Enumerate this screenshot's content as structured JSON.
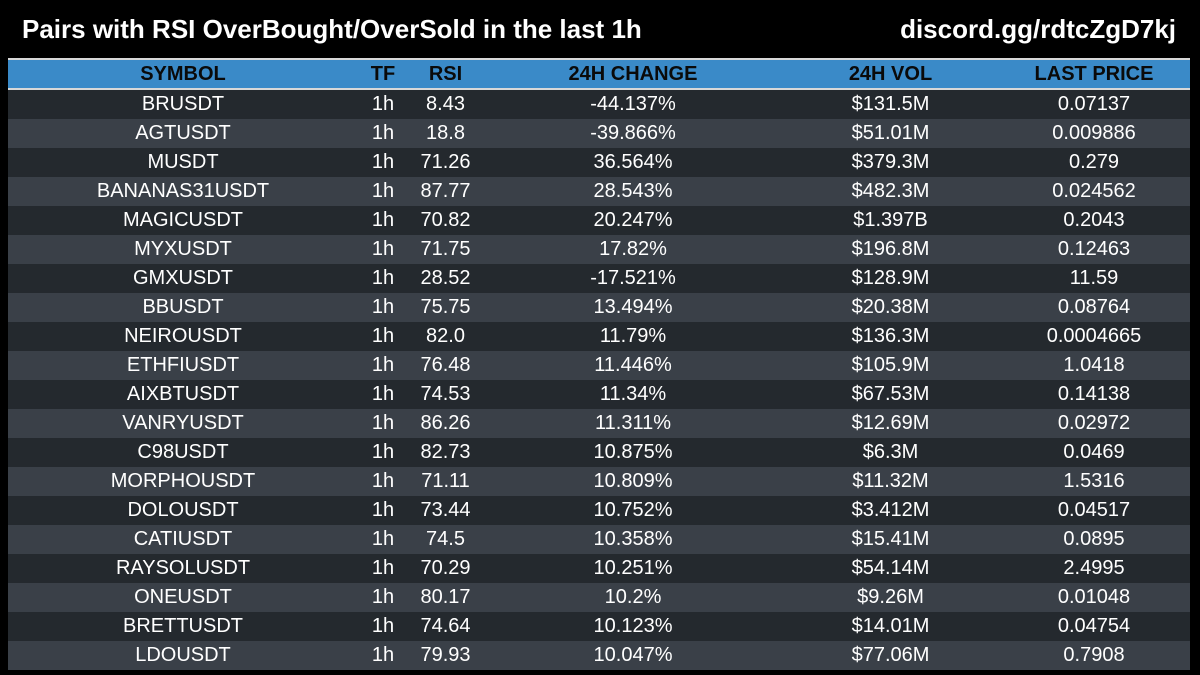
{
  "header": {
    "title": "Pairs with RSI OverBought/OverSold in the last 1h",
    "link": "discord.gg/rdtcZgD7kj"
  },
  "table": {
    "columns": [
      "SYMBOL",
      "TF",
      "RSI",
      "24H CHANGE",
      "24H VOL",
      "LAST PRICE"
    ],
    "rows": [
      [
        "BRUSDT",
        "1h",
        "8.43",
        "-44.137%",
        "$131.5M",
        "0.07137"
      ],
      [
        "AGTUSDT",
        "1h",
        "18.8",
        "-39.866%",
        "$51.01M",
        "0.009886"
      ],
      [
        "MUSDT",
        "1h",
        "71.26",
        "36.564%",
        "$379.3M",
        "0.279"
      ],
      [
        "BANANAS31USDT",
        "1h",
        "87.77",
        "28.543%",
        "$482.3M",
        "0.024562"
      ],
      [
        "MAGICUSDT",
        "1h",
        "70.82",
        "20.247%",
        "$1.397B",
        "0.2043"
      ],
      [
        "MYXUSDT",
        "1h",
        "71.75",
        "17.82%",
        "$196.8M",
        "0.12463"
      ],
      [
        "GMXUSDT",
        "1h",
        "28.52",
        "-17.521%",
        "$128.9M",
        "11.59"
      ],
      [
        "BBUSDT",
        "1h",
        "75.75",
        "13.494%",
        "$20.38M",
        "0.08764"
      ],
      [
        "NEIROUSDT",
        "1h",
        "82.0",
        "11.79%",
        "$136.3M",
        "0.0004665"
      ],
      [
        "ETHFIUSDT",
        "1h",
        "76.48",
        "11.446%",
        "$105.9M",
        "1.0418"
      ],
      [
        "AIXBTUSDT",
        "1h",
        "74.53",
        "11.34%",
        "$67.53M",
        "0.14138"
      ],
      [
        "VANRYUSDT",
        "1h",
        "86.26",
        "11.311%",
        "$12.69M",
        "0.02972"
      ],
      [
        "C98USDT",
        "1h",
        "82.73",
        "10.875%",
        "$6.3M",
        "0.0469"
      ],
      [
        "MORPHOUSDT",
        "1h",
        "71.11",
        "10.809%",
        "$11.32M",
        "1.5316"
      ],
      [
        "DOLOUSDT",
        "1h",
        "73.44",
        "10.752%",
        "$3.412M",
        "0.04517"
      ],
      [
        "CATIUSDT",
        "1h",
        "74.5",
        "10.358%",
        "$15.41M",
        "0.0895"
      ],
      [
        "RAYSOLUSDT",
        "1h",
        "70.29",
        "10.251%",
        "$54.14M",
        "2.4995"
      ],
      [
        "ONEUSDT",
        "1h",
        "80.17",
        "10.2%",
        "$9.26M",
        "0.01048"
      ],
      [
        "BRETTUSDT",
        "1h",
        "74.64",
        "10.123%",
        "$14.01M",
        "0.04754"
      ],
      [
        "LDOUSDT",
        "1h",
        "79.93",
        "10.047%",
        "$77.06M",
        "0.7908"
      ]
    ]
  },
  "colors": {
    "background": "#000000",
    "header_row": "#3a8ac8",
    "row_dark": "#24292e",
    "row_light": "#3a4048",
    "text": "#ffffff"
  }
}
